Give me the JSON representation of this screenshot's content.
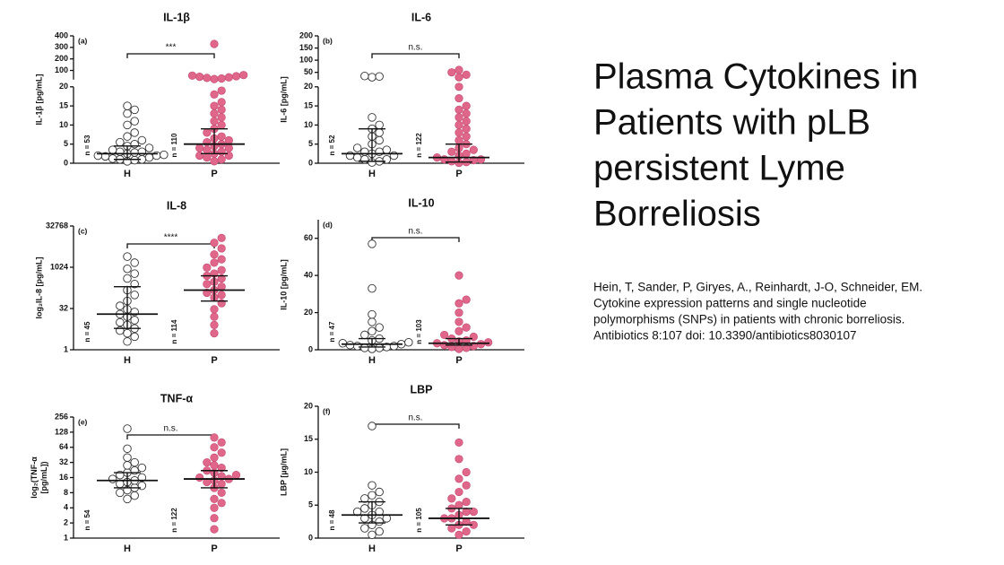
{
  "slide": {
    "title_lines": [
      "Plasma Cytokines in",
      "Patients with pLB",
      "persistent Lyme",
      "Borreliosis"
    ],
    "citation_lines": [
      "Hein, T, Sander, P, Giryes, A., Reinhardt, J-O, Schneider, EM.",
      "Cytokine expression patterns and single nucleotide",
      "polymorphisms (SNPs) in patients with chronic borreliosis.",
      "Antibiotics 8:107 doi: 10.3390/antibiotics8030107"
    ]
  },
  "chart_data": [
    {
      "type": "dotplot",
      "title": "IL-1β",
      "panel": "(a)",
      "y_label": [
        "IL-1β [pg/mL]"
      ],
      "significance": "***",
      "categories": [
        "H",
        "P"
      ],
      "ylim": [
        0,
        400
      ],
      "ybreak": 20,
      "yticks": [
        0,
        5,
        10,
        15,
        20,
        100,
        200,
        300,
        400
      ],
      "groups": [
        {
          "n_label": "n = 53",
          "color": "#ffffff",
          "values": [
            0.5,
            0.8,
            1,
            1,
            1.2,
            1.5,
            1.8,
            2,
            2,
            2.2,
            2.5,
            2.8,
            3,
            3,
            3.5,
            4,
            4.5,
            5,
            5.5,
            6,
            7,
            8,
            10,
            11,
            13,
            14,
            15
          ],
          "median": 2.5,
          "iqr": [
            1,
            4.5
          ]
        },
        {
          "n_label": "n = 110",
          "color": "#e0668a",
          "values": [
            0.5,
            1,
            1.5,
            2,
            2,
            2.5,
            3,
            3.5,
            4,
            4,
            4.5,
            5,
            5.5,
            6,
            6.5,
            7,
            8,
            9,
            10,
            11,
            12,
            13,
            14,
            15,
            16,
            18,
            19,
            25,
            30,
            35,
            40,
            45,
            50,
            55,
            60,
            330
          ],
          "median": 5,
          "iqr": [
            2.5,
            9
          ]
        }
      ]
    },
    {
      "type": "dotplot",
      "title": "IL-6",
      "panel": "(b)",
      "y_label": [
        "IL-6 [pg/mL]"
      ],
      "significance": "n.s.",
      "categories": [
        "H",
        "P"
      ],
      "ylim": [
        0,
        200
      ],
      "ybreak": 20,
      "yticks": [
        0,
        5,
        10,
        15,
        20,
        50,
        100,
        150,
        200
      ],
      "groups": [
        {
          "n_label": "n = 52",
          "color": "#ffffff",
          "values": [
            0.2,
            0.5,
            1,
            1,
            1.5,
            2,
            2,
            2.5,
            3,
            3,
            3.5,
            4,
            5,
            6,
            7,
            8,
            9,
            10,
            12,
            30,
            33,
            35
          ],
          "median": 2.5,
          "iqr": [
            0.5,
            9
          ]
        },
        {
          "n_label": "n = 122",
          "color": "#e0668a",
          "values": [
            0.1,
            0.3,
            0.5,
            0.8,
            1,
            1,
            1.5,
            2,
            2.5,
            3,
            3.5,
            4,
            5,
            6,
            7,
            8,
            9,
            10,
            11,
            12,
            13,
            14,
            15,
            17,
            20,
            30,
            40,
            50,
            60
          ],
          "median": 1.5,
          "iqr": [
            0.3,
            5
          ]
        }
      ]
    },
    {
      "type": "dotplot",
      "title": "IL-8",
      "panel": "(c)",
      "y_label": [
        "log₂IL-8 [pg/mL]"
      ],
      "significance": "****",
      "categories": [
        "H",
        "P"
      ],
      "ylim": [
        1,
        32768
      ],
      "log_base": 2,
      "yticks": [
        1,
        32,
        1024,
        32768
      ],
      "groups": [
        {
          "n_label": "n = 45",
          "color": "#ffffff",
          "values": [
            2,
            3,
            4,
            5,
            6,
            8,
            10,
            12,
            16,
            20,
            24,
            30,
            40,
            60,
            100,
            150,
            250,
            400,
            600,
            900,
            1500,
            2500
          ],
          "median": 20,
          "iqr": [
            6,
            200
          ]
        },
        {
          "n_label": "n = 114",
          "color": "#e0668a",
          "values": [
            4,
            8,
            16,
            30,
            50,
            80,
            100,
            120,
            150,
            200,
            250,
            300,
            400,
            500,
            600,
            800,
            1000,
            1500,
            2000,
            3000,
            5000,
            8000,
            12000
          ],
          "median": 150,
          "iqr": [
            60,
            500
          ]
        }
      ]
    },
    {
      "type": "dotplot",
      "title": "IL-10",
      "panel": "(d)",
      "y_label": [
        "IL-10 [pg/mL]"
      ],
      "significance": "n.s.",
      "categories": [
        "H",
        "P"
      ],
      "ylim": [
        0,
        70
      ],
      "yticks": [
        0,
        20,
        40,
        60
      ],
      "groups": [
        {
          "n_label": "n = 47",
          "color": "#ffffff",
          "values": [
            0.5,
            1,
            1,
            1.5,
            2,
            2,
            2.5,
            3,
            3.5,
            4,
            5,
            6,
            8,
            10,
            12,
            15,
            19,
            33,
            57
          ],
          "median": 3,
          "iqr": [
            1.5,
            6
          ]
        },
        {
          "n_label": "n = 103",
          "color": "#e0668a",
          "values": [
            0.5,
            1,
            1.5,
            2,
            2.5,
            3,
            3.5,
            4,
            4.5,
            5,
            6,
            7,
            8,
            10,
            12,
            15,
            20,
            25,
            27,
            40
          ],
          "median": 3.5,
          "iqr": [
            2.5,
            6
          ]
        }
      ]
    },
    {
      "type": "dotplot",
      "title": "TNF-α",
      "panel": "(e)",
      "y_label": [
        "log₂(TNF-α",
        "[pg/mL])"
      ],
      "significance": "n.s.",
      "categories": [
        "H",
        "P"
      ],
      "ylim": [
        1,
        256
      ],
      "log_base": 2,
      "yticks": [
        1,
        2,
        4,
        8,
        16,
        32,
        64,
        128,
        256
      ],
      "groups": [
        {
          "n_label": "n = 54",
          "color": "#ffffff",
          "values": [
            6,
            7,
            8,
            9,
            10,
            11,
            12,
            13,
            14,
            15,
            16,
            18,
            20,
            22,
            25,
            28,
            32,
            40,
            60,
            150
          ],
          "median": 14,
          "iqr": [
            10,
            20
          ]
        },
        {
          "n_label": "n = 122",
          "color": "#e0668a",
          "values": [
            1.5,
            2.5,
            4,
            5,
            6,
            8,
            10,
            12,
            13,
            14,
            15,
            16,
            17,
            18,
            20,
            22,
            25,
            28,
            32,
            40,
            50,
            64,
            80,
            100
          ],
          "median": 15,
          "iqr": [
            10,
            22
          ]
        }
      ]
    },
    {
      "type": "dotplot",
      "title": "LBP",
      "panel": "(f)",
      "y_label": [
        "LBP [µg/mL]"
      ],
      "significance": "n.s.",
      "categories": [
        "H",
        "P"
      ],
      "ylim": [
        0,
        20
      ],
      "yticks": [
        0,
        5,
        10,
        15,
        20
      ],
      "groups": [
        {
          "n_label": "n = 48",
          "color": "#ffffff",
          "values": [
            0.5,
            1,
            1.5,
            2,
            2.5,
            3,
            3,
            3.5,
            4,
            4,
            4.5,
            5,
            5.5,
            6,
            6.5,
            7,
            8,
            17
          ],
          "median": 3.5,
          "iqr": [
            2.3,
            5.5
          ]
        },
        {
          "n_label": "n = 105",
          "color": "#e0668a",
          "values": [
            0.5,
            1,
            1.5,
            2,
            2,
            2.5,
            3,
            3,
            3.5,
            4,
            4,
            4.5,
            5,
            5.5,
            6,
            7,
            8,
            9,
            10,
            12,
            14.5
          ],
          "median": 3,
          "iqr": [
            2,
            4.5
          ]
        }
      ]
    }
  ]
}
